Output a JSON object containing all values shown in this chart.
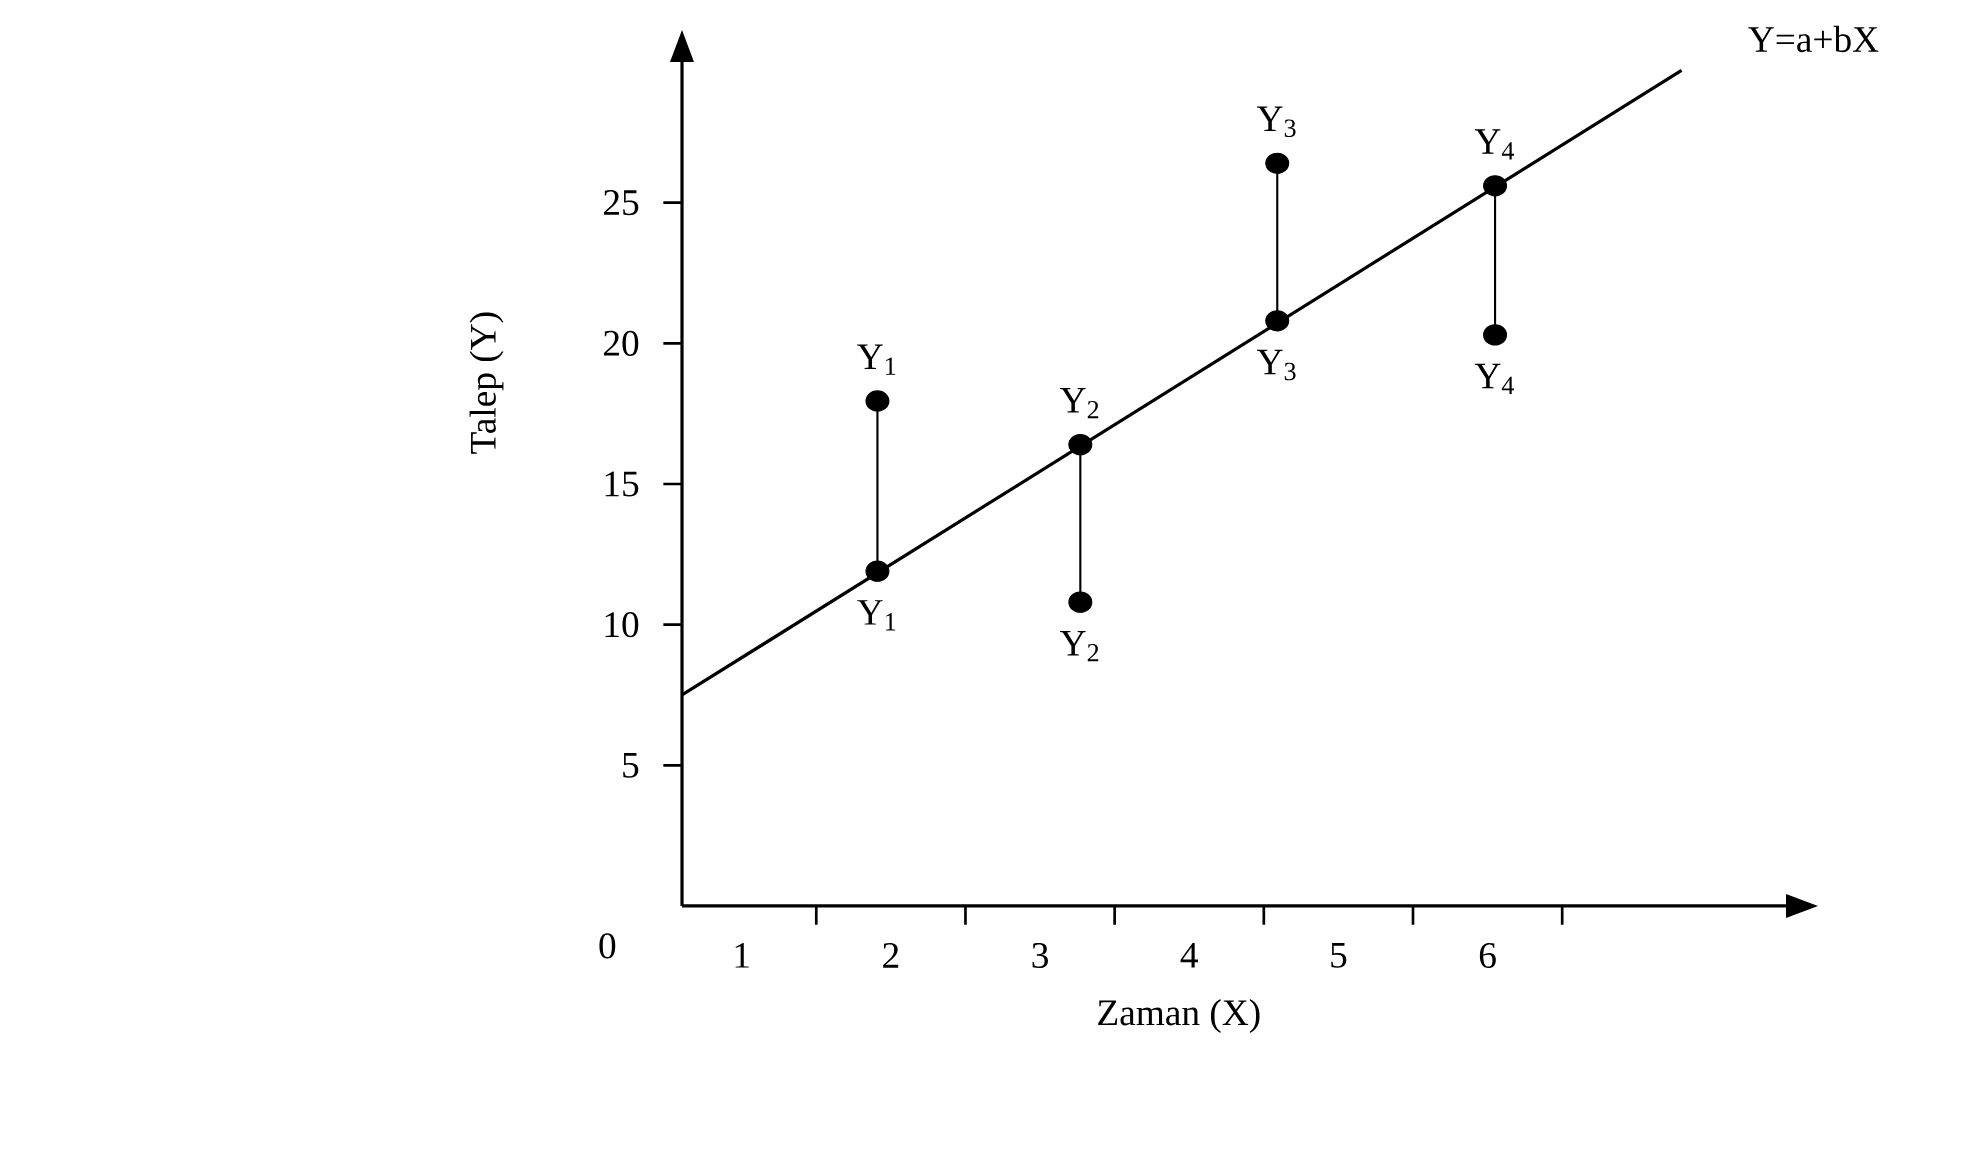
{
  "chart_data": {
    "type": "scatter",
    "xlabel": "Zaman (X)",
    "ylabel": "Talep (Y)",
    "xlim": [
      0.6,
      8
    ],
    "ylim": [
      0,
      30
    ],
    "xticks": [
      {
        "value": 1,
        "label": "1"
      },
      {
        "value": 2,
        "label": "2"
      },
      {
        "value": 3,
        "label": "3"
      },
      {
        "value": 4,
        "label": "4"
      },
      {
        "value": 5,
        "label": "5"
      },
      {
        "value": 6,
        "label": "6"
      },
      {
        "value": 1.5,
        "label": null
      },
      {
        "value": 2.5,
        "label": null
      },
      {
        "value": 3.5,
        "label": null
      },
      {
        "value": 4.5,
        "label": null
      },
      {
        "value": 5.5,
        "label": null
      },
      {
        "value": 6.5,
        "label": null
      }
    ],
    "yticks": [
      5,
      10,
      15,
      20,
      25
    ],
    "grid": false,
    "marker": "circle",
    "series": [
      {
        "type": "line",
        "color": "#000000",
        "x": [
          0.6,
          7.3
        ],
        "values": [
          7.5,
          29.7
        ],
        "marker": "none"
      },
      {
        "type": "line",
        "color": "#000000",
        "x": [
          1.91,
          1.91
        ],
        "values": [
          11.9,
          17.95
        ],
        "marker": "none"
      },
      {
        "type": "line",
        "color": "#000000",
        "x": [
          3.27,
          3.27
        ],
        "values": [
          16.4,
          10.8
        ],
        "marker": "none"
      },
      {
        "type": "line",
        "color": "#000000",
        "x": [
          4.59,
          4.59
        ],
        "values": [
          20.8,
          26.4
        ],
        "marker": "none"
      },
      {
        "type": "line",
        "color": "#000000",
        "x": [
          6.05,
          6.05
        ],
        "values": [
          25.6,
          20.3
        ],
        "marker": "none"
      },
      {
        "type": "scatter",
        "color": "#000000",
        "x": [
          1.91,
          3.27,
          4.59,
          6.05
        ],
        "values": [
          17.95,
          10.8,
          26.4,
          20.3
        ]
      },
      {
        "type": "scatter",
        "color": "#000000",
        "x": [
          1.91,
          3.27,
          4.59,
          6.05
        ],
        "values": [
          11.9,
          16.4,
          20.8,
          25.6
        ]
      }
    ],
    "annotations": [
      "0",
      {
        "text": "Y$_{1}$",
        "x": 1.91,
        "y": 17.95
      },
      {
        "text": "Y$_{1}$",
        "x": 1.91,
        "y": 11.9
      },
      {
        "text": "Y$_{2}$",
        "x": 3.27,
        "y": 16.4
      },
      {
        "text": "Y$_{2}$",
        "x": 3.27,
        "y": 10.8
      },
      {
        "text": "Y$_{3}$",
        "x": 4.59,
        "y": 26.4
      },
      {
        "text": "Y$_{3}$",
        "x": 4.59,
        "y": 20.8
      },
      {
        "text": "Y$_{4}$",
        "x": 6.05,
        "y": 25.6
      },
      {
        "text": "Y$_{4}$",
        "x": 6.05,
        "y": 20.3
      },
      {
        "text": "Y=a+bX",
        "x": 7.3,
        "y": 29.7
      }
    ]
  }
}
